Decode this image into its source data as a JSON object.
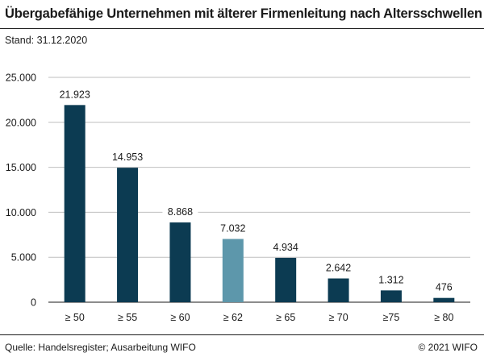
{
  "header": {
    "title": "Übergabefähige Unternehmen mit älterer Firmenleitung nach Altersschwellen",
    "subtitle": "Stand: 31.12.2020"
  },
  "footer": {
    "source": "Quelle: Handelsregister; Ausarbeitung WIFO",
    "copyright": "© 2021 WIFO"
  },
  "chart_data": {
    "type": "bar",
    "title": "Übergabefähige Unternehmen mit älterer Firmenleitung nach Altersschwellen",
    "subtitle": "Stand: 31.12.2020",
    "categories": [
      "≥ 50",
      "≥ 55",
      "≥ 60",
      "≥ 62",
      "≥ 65",
      "≥ 70",
      "≥75",
      "≥ 80"
    ],
    "values": [
      21923,
      14953,
      8868,
      7032,
      4934,
      2642,
      1312,
      476
    ],
    "value_labels": [
      "21.923",
      "14.953",
      "8.868",
      "7.032",
      "4.934",
      "2.642",
      "1.312",
      "476"
    ],
    "y_ticks": [
      0,
      5000,
      10000,
      15000,
      20000,
      25000
    ],
    "y_tick_labels": [
      "0",
      "5.000",
      "10.000",
      "15.000",
      "20.000",
      "25.000"
    ],
    "ylim": [
      0,
      25000
    ],
    "xlabel": "",
    "ylabel": "",
    "grid": true,
    "colors": {
      "default": "#0c3b52",
      "highlight": "#5d97ab",
      "grid": "#bfbfbf"
    },
    "highlight_index": 3
  }
}
